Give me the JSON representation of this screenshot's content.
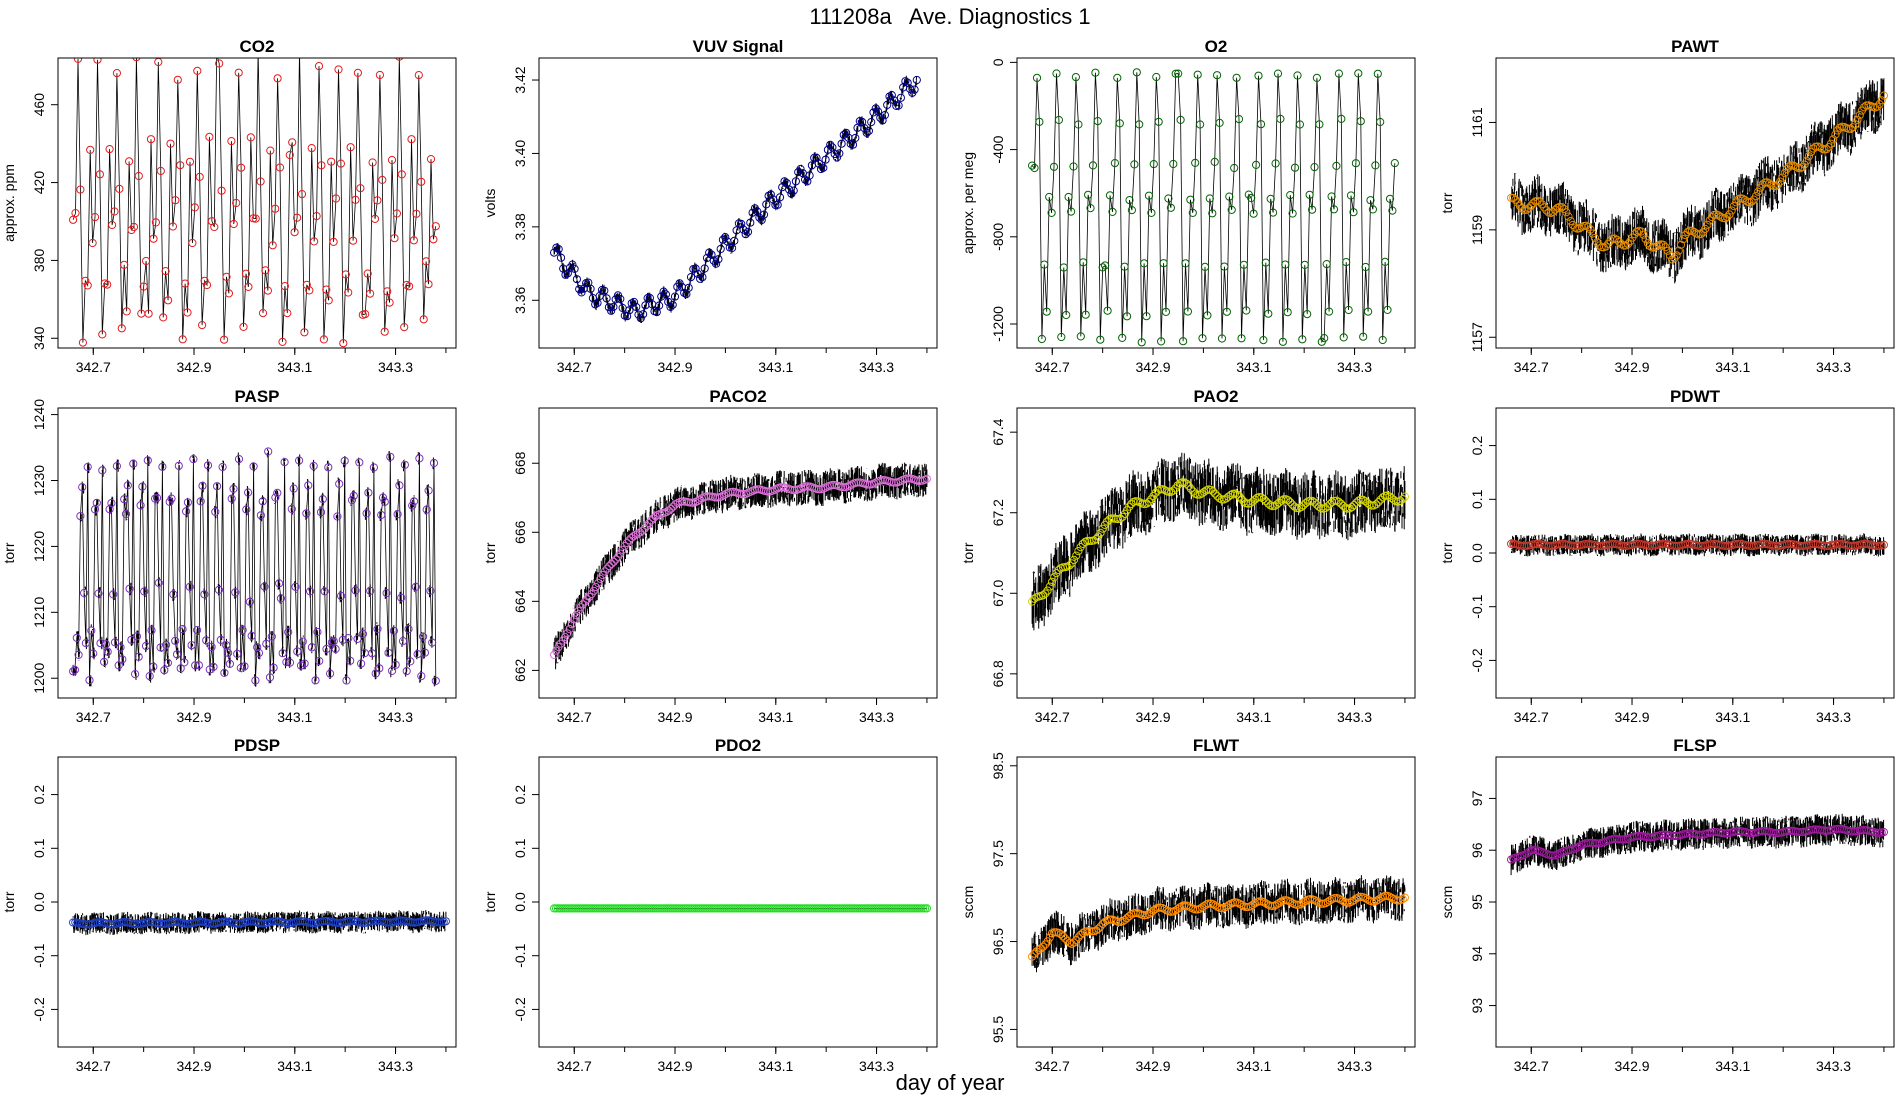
{
  "figure": {
    "title": "111208a   Ave. Diagnostics 1",
    "xlabel": "day of year"
  },
  "chart_data": [
    {
      "name": "CO2",
      "type": "scatter",
      "title": "CO2",
      "ylabel": "approx. ppm",
      "xlim": [
        342.63,
        343.42
      ],
      "ylim": [
        335,
        484
      ],
      "xticks": [
        342.7,
        342.9,
        343.1,
        343.3
      ],
      "xtick_labels": [
        "342.7",
        "342.9",
        "343.1",
        "343.3"
      ],
      "yticks": [
        340,
        380,
        420,
        460
      ],
      "ytick_labels": [
        "340",
        "380",
        "420",
        "460"
      ],
      "mode": "cycle",
      "cycle": [
        405,
        480,
        422,
        345,
        372,
        360,
        436,
        395
      ],
      "cycle_period": 0.04,
      "noise": 8,
      "n_points": 150,
      "marker_color": "#e41a1c",
      "bw_noise": 0
    },
    {
      "name": "VUV Signal",
      "type": "scatter",
      "title": "VUV Signal",
      "ylabel": "volts",
      "xlim": [
        342.63,
        343.42
      ],
      "ylim": [
        3.347,
        3.426
      ],
      "xticks": [
        342.7,
        342.9,
        343.1,
        343.3
      ],
      "xtick_labels": [
        "342.7",
        "342.9",
        "343.1",
        "343.3"
      ],
      "yticks": [
        3.36,
        3.38,
        3.4,
        3.42
      ],
      "ytick_labels": [
        "3.36",
        "3.38",
        "3.40",
        "3.42"
      ],
      "mode": "trend",
      "trend_x": [
        342.66,
        342.73,
        342.82,
        342.9,
        343.0,
        343.1,
        343.2,
        343.3,
        343.38
      ],
      "trend_y": [
        3.373,
        3.362,
        3.357,
        3.361,
        3.375,
        3.388,
        3.399,
        3.41,
        3.42
      ],
      "wiggle": 0.0025,
      "wiggle_period": 0.03,
      "n_points": 160,
      "marker_color": "#00008b",
      "bw_noise": 0.0015
    },
    {
      "name": "O2",
      "type": "scatter",
      "title": "O2",
      "ylabel": "approx. per meg",
      "xlim": [
        342.63,
        343.42
      ],
      "ylim": [
        -1310,
        20
      ],
      "xticks": [
        342.7,
        342.9,
        343.1,
        343.3
      ],
      "xtick_labels": [
        "342.7",
        "342.9",
        "343.1",
        "343.3"
      ],
      "yticks": [
        -1200,
        -800,
        -400,
        0
      ],
      "ytick_labels": [
        "-1200",
        "-800",
        "-400",
        "0"
      ],
      "mode": "cycle",
      "cycle": [
        -470,
        -60,
        -270,
        -1270,
        -930,
        -1150,
        -620,
        -680
      ],
      "cycle_period": 0.04,
      "noise": 15,
      "n_points": 150,
      "marker_color": "#006400",
      "bw_noise": 0
    },
    {
      "name": "PAWT",
      "type": "scatter",
      "title": "PAWT",
      "ylabel": "torr",
      "xlim": [
        342.63,
        343.42
      ],
      "ylim": [
        1156.8,
        1162.2
      ],
      "xticks": [
        342.7,
        342.9,
        343.1,
        343.3
      ],
      "xtick_labels": [
        "342.7",
        "342.9",
        "343.1",
        "343.3"
      ],
      "yticks": [
        1157,
        1159,
        1161
      ],
      "ytick_labels": [
        "1157",
        "1159",
        "1161"
      ],
      "mode": "trend",
      "trend_x": [
        342.66,
        342.75,
        342.85,
        342.92,
        342.98,
        343.0,
        343.1,
        343.2,
        343.3,
        343.4
      ],
      "trend_y": [
        1159.5,
        1159.4,
        1158.7,
        1158.9,
        1158.5,
        1158.8,
        1159.4,
        1160.0,
        1160.7,
        1161.5
      ],
      "wiggle": 0.1,
      "wiggle_period": 0.05,
      "n_points": 170,
      "marker_color": "#e08a00",
      "bw_noise": 0.5
    },
    {
      "name": "PASP",
      "type": "scatter",
      "title": "PASP",
      "ylabel": "torr",
      "xlim": [
        342.63,
        343.42
      ],
      "ylim": [
        1197,
        1241
      ],
      "xticks": [
        342.7,
        342.9,
        343.1,
        343.3
      ],
      "xtick_labels": [
        "342.7",
        "342.9",
        "343.1",
        "343.3"
      ],
      "yticks": [
        1200,
        1210,
        1220,
        1230,
        1240
      ],
      "ytick_labels": [
        "1200",
        "1210",
        "1220",
        "1230",
        "1240"
      ],
      "mode": "cycle",
      "cycle": [
        1201,
        1206,
        1203,
        1226,
        1228,
        1213,
        1205,
        1233
      ],
      "cycle_period": 0.03,
      "noise": 1.5,
      "n_points": 200,
      "marker_color": "#7b2fbe",
      "bw_noise": 1
    },
    {
      "name": "PACO2",
      "type": "scatter",
      "title": "PACO2",
      "ylabel": "torr",
      "xlim": [
        342.63,
        343.42
      ],
      "ylim": [
        661.2,
        669.6
      ],
      "xticks": [
        342.7,
        342.9,
        343.1,
        343.3
      ],
      "xtick_labels": [
        "342.7",
        "342.9",
        "343.1",
        "343.3"
      ],
      "yticks": [
        662,
        664,
        666,
        668
      ],
      "ytick_labels": [
        "662",
        "664",
        "666",
        "668"
      ],
      "mode": "trend",
      "trend_x": [
        342.66,
        342.7,
        342.75,
        342.8,
        342.85,
        342.9,
        343.0,
        343.1,
        343.2,
        343.3,
        343.4
      ],
      "trend_y": [
        662.4,
        663.5,
        664.6,
        665.6,
        666.3,
        666.8,
        667.1,
        667.25,
        667.3,
        667.45,
        667.55
      ],
      "wiggle": 0.05,
      "wiggle_period": 0.05,
      "n_points": 170,
      "marker_color": "#da70d6",
      "bw_noise": 0.5
    },
    {
      "name": "PAO2",
      "type": "scatter",
      "title": "PAO2",
      "ylabel": "torr",
      "xlim": [
        342.63,
        343.42
      ],
      "ylim": [
        66.74,
        67.46
      ],
      "xticks": [
        342.7,
        342.9,
        343.1,
        343.3
      ],
      "xtick_labels": [
        "342.7",
        "342.9",
        "343.1",
        "343.3"
      ],
      "yticks": [
        66.8,
        67.0,
        67.2,
        67.4
      ],
      "ytick_labels": [
        "66.8",
        "67.0",
        "67.2",
        "67.4"
      ],
      "mode": "trend",
      "trend_x": [
        342.66,
        342.7,
        342.75,
        342.8,
        342.85,
        342.9,
        342.95,
        343.0,
        343.1,
        343.2,
        343.3,
        343.4
      ],
      "trend_y": [
        66.97,
        67.03,
        67.1,
        67.16,
        67.21,
        67.24,
        67.27,
        67.25,
        67.23,
        67.22,
        67.22,
        67.24
      ],
      "wiggle": 0.01,
      "wiggle_period": 0.05,
      "n_points": 170,
      "marker_color": "#d4d400",
      "bw_noise": 0.08
    },
    {
      "name": "PDWT",
      "type": "scatter",
      "title": "PDWT",
      "ylabel": "torr",
      "xlim": [
        342.63,
        343.42
      ],
      "ylim": [
        -0.27,
        0.27
      ],
      "xticks": [
        342.7,
        342.9,
        343.1,
        343.3
      ],
      "xtick_labels": [
        "342.7",
        "342.9",
        "343.1",
        "343.3"
      ],
      "yticks": [
        -0.2,
        -0.1,
        0.0,
        0.1,
        0.2
      ],
      "ytick_labels": [
        "-0.2",
        "-0.1",
        "0.0",
        "0.1",
        "0.2"
      ],
      "mode": "trend",
      "trend_x": [
        342.66,
        343.4
      ],
      "trend_y": [
        0.015,
        0.015
      ],
      "wiggle": 0.002,
      "wiggle_period": 0.05,
      "n_points": 170,
      "marker_color": "#c0392b",
      "bw_noise": 0.02
    },
    {
      "name": "PDSP",
      "type": "scatter",
      "title": "PDSP",
      "ylabel": "torr",
      "xlim": [
        342.63,
        343.42
      ],
      "ylim": [
        -0.27,
        0.27
      ],
      "xticks": [
        342.7,
        342.9,
        343.1,
        343.3
      ],
      "xtick_labels": [
        "342.7",
        "342.9",
        "343.1",
        "343.3"
      ],
      "yticks": [
        -0.2,
        -0.1,
        0.0,
        0.1,
        0.2
      ],
      "ytick_labels": [
        "-0.2",
        "-0.1",
        "0.0",
        "0.1",
        "0.2"
      ],
      "mode": "trend",
      "trend_x": [
        342.66,
        343.4
      ],
      "trend_y": [
        -0.04,
        -0.036
      ],
      "wiggle": 0.002,
      "wiggle_period": 0.05,
      "n_points": 170,
      "marker_color": "#1f3fbf",
      "bw_noise": 0.02
    },
    {
      "name": "PDO2",
      "type": "scatter",
      "title": "PDO2",
      "ylabel": "torr",
      "xlim": [
        342.63,
        343.42
      ],
      "ylim": [
        -0.27,
        0.27
      ],
      "xticks": [
        342.7,
        342.9,
        343.1,
        343.3
      ],
      "xtick_labels": [
        "342.7",
        "342.9",
        "343.1",
        "343.3"
      ],
      "yticks": [
        -0.2,
        -0.1,
        0.0,
        0.1,
        0.2
      ],
      "ytick_labels": [
        "-0.2",
        "-0.1",
        "0.0",
        "0.1",
        "0.2"
      ],
      "mode": "trend",
      "trend_x": [
        342.66,
        343.4
      ],
      "trend_y": [
        -0.012,
        -0.012
      ],
      "wiggle": 0.0,
      "wiggle_period": 0.05,
      "n_points": 200,
      "marker_color": "#22dd22",
      "bw_noise": 0
    },
    {
      "name": "FLWT",
      "type": "scatter",
      "title": "FLWT",
      "ylabel": "sccm",
      "xlim": [
        342.63,
        343.42
      ],
      "ylim": [
        95.3,
        98.6
      ],
      "xticks": [
        342.7,
        342.9,
        343.1,
        343.3
      ],
      "xtick_labels": [
        "342.7",
        "342.9",
        "343.1",
        "343.3"
      ],
      "yticks": [
        95.5,
        96.5,
        97.5,
        98.5
      ],
      "ytick_labels": [
        "95.5",
        "96.5",
        "97.5",
        "98.5"
      ],
      "mode": "trend",
      "trend_x": [
        342.66,
        342.7,
        342.74,
        342.8,
        342.9,
        343.0,
        343.2,
        343.4
      ],
      "trend_y": [
        96.3,
        96.6,
        96.5,
        96.7,
        96.85,
        96.9,
        96.95,
        97.0
      ],
      "wiggle": 0.03,
      "wiggle_period": 0.05,
      "n_points": 170,
      "marker_color": "#ff8c00",
      "bw_noise": 0.25
    },
    {
      "name": "FLSP",
      "type": "scatter",
      "title": "FLSP",
      "ylabel": "sccm",
      "xlim": [
        342.63,
        343.42
      ],
      "ylim": [
        92.2,
        97.8
      ],
      "xticks": [
        342.7,
        342.9,
        343.1,
        343.3
      ],
      "xtick_labels": [
        "342.7",
        "342.9",
        "343.1",
        "343.3"
      ],
      "yticks": [
        93,
        94,
        95,
        96,
        97
      ],
      "ytick_labels": [
        "93",
        "94",
        "95",
        "96",
        "97"
      ],
      "mode": "trend",
      "trend_x": [
        342.66,
        342.7,
        342.75,
        342.8,
        342.9,
        343.0,
        343.1,
        343.2,
        343.3,
        343.4
      ],
      "trend_y": [
        95.8,
        96.0,
        95.9,
        96.1,
        96.25,
        96.3,
        96.35,
        96.35,
        96.4,
        96.35
      ],
      "wiggle": 0.02,
      "wiggle_period": 0.05,
      "n_points": 170,
      "marker_color": "#9b1b9b",
      "bw_noise": 0.3
    }
  ]
}
